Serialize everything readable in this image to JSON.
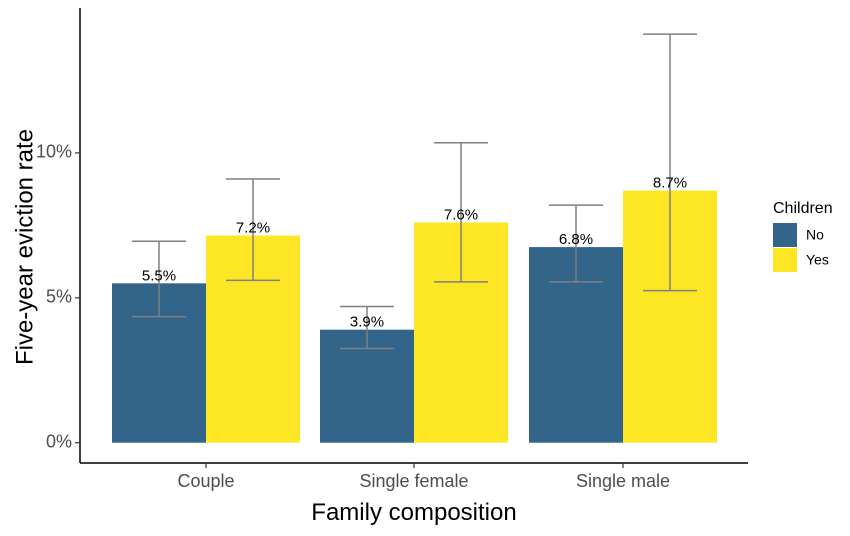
{
  "chart_data": {
    "type": "bar",
    "categories": [
      "Couple",
      "Single female",
      "Single male"
    ],
    "series": [
      {
        "name": "No",
        "color": "#33658A",
        "values": [
          5.5,
          3.9,
          6.75
        ],
        "labels": [
          "5.5%",
          "3.9%",
          "6.8%"
        ],
        "ci_low": [
          4.35,
          3.25,
          5.55
        ],
        "ci_high": [
          6.95,
          4.7,
          8.2
        ]
      },
      {
        "name": "Yes",
        "color": "#FDE725",
        "values": [
          7.15,
          7.6,
          8.7
        ],
        "labels": [
          "7.2%",
          "7.6%",
          "8.7%"
        ],
        "ci_low": [
          5.6,
          5.55,
          5.25
        ],
        "ci_high": [
          9.1,
          10.35,
          14.1
        ]
      }
    ],
    "xlabel": "Family composition",
    "ylabel": "Five-year eviction rate",
    "yticks": [
      0,
      5,
      10
    ],
    "ytick_labels": [
      "0%",
      "5%",
      "10%"
    ],
    "ylim": [
      -0.7,
      15.0
    ],
    "legend": {
      "title": "Children",
      "position": "right",
      "entries": [
        "No",
        "Yes"
      ]
    },
    "grid": false,
    "error_bar_color": "#808080"
  }
}
